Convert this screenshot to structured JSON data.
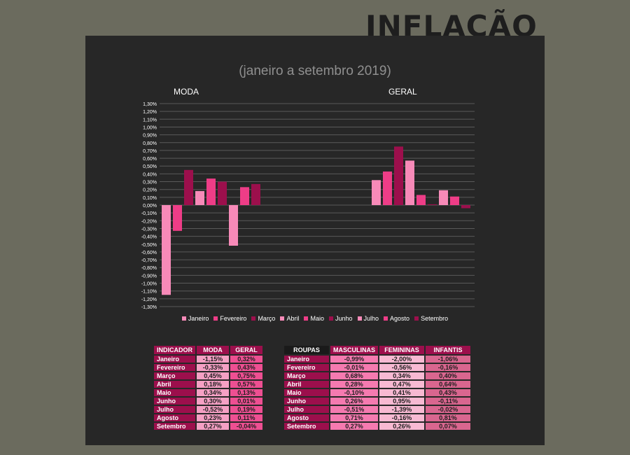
{
  "page": {
    "title": "INFLAÇÃO",
    "subtitle": "(janeiro a setembro 2019)"
  },
  "colors": {
    "background": "#6b6b5e",
    "panel": "#272727",
    "grid": "#5a5a5a",
    "months": [
      "#f78ab8",
      "#ee3d87",
      "#9c0f4c",
      "#f78ab8",
      "#ee3d87",
      "#9c0f4c",
      "#f78ab8",
      "#ee3d87",
      "#9c0f4c"
    ],
    "label_cell": "#9c0f4c",
    "header_dark": "#1a1a1a",
    "moda_col": "#f5a0c4",
    "geral_col": "#ee4f92",
    "masc_col": "#f57ab0",
    "fem_col": "#f7b9d2",
    "inf_col": "#d9668f"
  },
  "chart_data": {
    "type": "bar",
    "groups": [
      "MODA",
      "GERAL"
    ],
    "series": [
      {
        "name": "Janeiro",
        "values": [
          -1.15,
          0.32
        ]
      },
      {
        "name": "Fevereiro",
        "values": [
          -0.33,
          0.43
        ]
      },
      {
        "name": "Março",
        "values": [
          0.45,
          0.75
        ]
      },
      {
        "name": "Abril",
        "values": [
          0.18,
          0.57
        ]
      },
      {
        "name": "Maio",
        "values": [
          0.34,
          0.13
        ]
      },
      {
        "name": "Junho",
        "values": [
          0.3,
          0.01
        ]
      },
      {
        "name": "Julho",
        "values": [
          -0.52,
          0.19
        ]
      },
      {
        "name": "Agosto",
        "values": [
          0.23,
          0.11
        ]
      },
      {
        "name": "Setembro",
        "values": [
          0.27,
          -0.04
        ]
      }
    ],
    "ylim": [
      -1.3,
      1.3
    ],
    "ytick_step": 0.1,
    "yticks": [
      "1,30%",
      "1,20%",
      "1,10%",
      "1,00%",
      "0,90%",
      "0,80%",
      "0,70%",
      "0,60%",
      "0,50%",
      "0,40%",
      "0,30%",
      "0,20%",
      "0,10%",
      "0,00%",
      "-0,10%",
      "-0,20%",
      "-0,30%",
      "-0,40%",
      "-0,50%",
      "-0,60%",
      "-0,70%",
      "-0,80%",
      "-0,90%",
      "-1,00%",
      "-1,10%",
      "-1,20%",
      "-1,30%"
    ],
    "grid": true,
    "legend": "bottom"
  },
  "table_indicador": {
    "headers": [
      "INDICADOR",
      "MODA",
      "GERAL"
    ],
    "rows": [
      [
        "Janeiro",
        "-1,15%",
        "0,32%"
      ],
      [
        "Fevereiro",
        "-0,33%",
        "0,43%"
      ],
      [
        "Março",
        "0,45%",
        "0,75%"
      ],
      [
        "Abril",
        "0,18%",
        "0,57%"
      ],
      [
        "Maio",
        "0,34%",
        "0,13%"
      ],
      [
        "Junho",
        "0,30%",
        "0,01%"
      ],
      [
        "Julho",
        "-0,52%",
        "0,19%"
      ],
      [
        "Agosto",
        "0,23%",
        "0,11%"
      ],
      [
        "Setembro",
        "0,27%",
        "-0,04%"
      ]
    ]
  },
  "table_roupas": {
    "headers": [
      "ROUPAS",
      "MASCULINAS",
      "FEMININAS",
      "INFANTIS"
    ],
    "rows": [
      [
        "Janeiro",
        "-0,99%",
        "-2,00%",
        "-1,06%"
      ],
      [
        "Fevereiro",
        "-0,01%",
        "-0,56%",
        "-0,16%"
      ],
      [
        "Março",
        "0,68%",
        "0,34%",
        "0,40%"
      ],
      [
        "Abril",
        "0,28%",
        "0,47%",
        "0,64%"
      ],
      [
        "Maio",
        "-0,10%",
        "0,41%",
        "0,43%"
      ],
      [
        "Junho",
        "0,26%",
        "0,95%",
        "-0,11%"
      ],
      [
        "Julho",
        "-0,51%",
        "-1,39%",
        "-0,02%"
      ],
      [
        "Agosto",
        "0,71%",
        "-0,16%",
        "0,81%"
      ],
      [
        "Setembro",
        "0,27%",
        "0,26%",
        "0,07%"
      ]
    ]
  }
}
